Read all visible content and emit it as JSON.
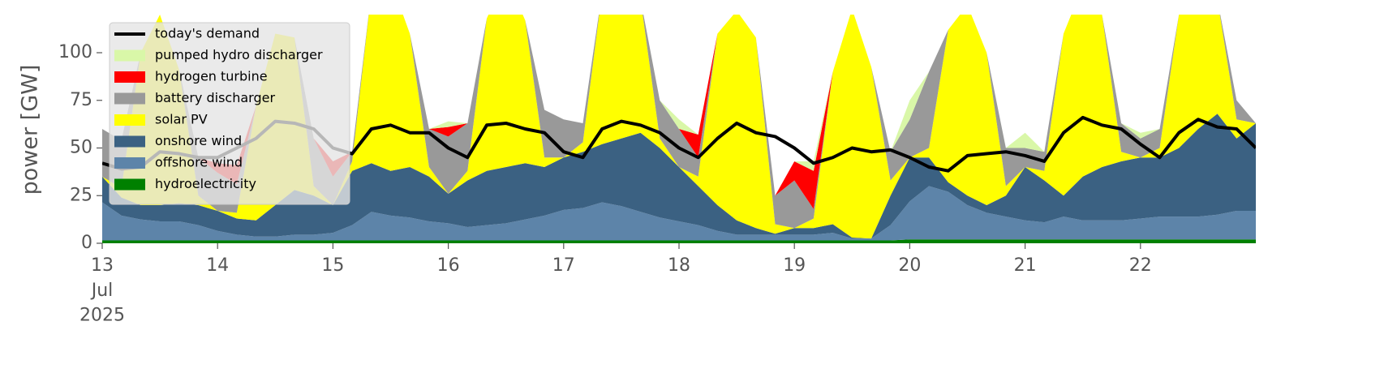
{
  "chart_data": {
    "type": "area",
    "ylabel": "power [GW]",
    "x": [
      "2025-07-13T00:00",
      "2025-07-13T04:00",
      "2025-07-13T08:00",
      "2025-07-13T12:00",
      "2025-07-13T16:00",
      "2025-07-13T20:00",
      "2025-07-14T00:00",
      "2025-07-14T04:00",
      "2025-07-14T08:00",
      "2025-07-14T12:00",
      "2025-07-14T16:00",
      "2025-07-14T20:00",
      "2025-07-15T00:00",
      "2025-07-15T04:00",
      "2025-07-15T08:00",
      "2025-07-15T12:00",
      "2025-07-15T16:00",
      "2025-07-15T20:00",
      "2025-07-16T00:00",
      "2025-07-16T04:00",
      "2025-07-16T08:00",
      "2025-07-16T12:00",
      "2025-07-16T16:00",
      "2025-07-16T20:00",
      "2025-07-17T00:00",
      "2025-07-17T04:00",
      "2025-07-17T08:00",
      "2025-07-17T12:00",
      "2025-07-17T16:00",
      "2025-07-17T20:00",
      "2025-07-18T00:00",
      "2025-07-18T04:00",
      "2025-07-18T08:00",
      "2025-07-18T12:00",
      "2025-07-18T16:00",
      "2025-07-18T20:00",
      "2025-07-19T00:00",
      "2025-07-19T04:00",
      "2025-07-19T08:00",
      "2025-07-19T12:00",
      "2025-07-19T16:00",
      "2025-07-19T20:00",
      "2025-07-20T00:00",
      "2025-07-20T04:00",
      "2025-07-20T08:00",
      "2025-07-20T12:00",
      "2025-07-20T16:00",
      "2025-07-20T20:00",
      "2025-07-21T00:00",
      "2025-07-21T04:00",
      "2025-07-21T08:00",
      "2025-07-21T12:00",
      "2025-07-21T16:00",
      "2025-07-21T20:00",
      "2025-07-22T00:00",
      "2025-07-22T04:00",
      "2025-07-22T08:00",
      "2025-07-22T12:00",
      "2025-07-22T16:00",
      "2025-07-22T20:00",
      "2025-07-23T00:00"
    ],
    "xlim": [
      "2025-07-13T00:00",
      "2025-07-23T00:00"
    ],
    "xticks": [
      {
        "value": "2025-07-13T00:00",
        "label": "13\nJul\n2025"
      },
      {
        "value": "2025-07-14T00:00",
        "label": "14"
      },
      {
        "value": "2025-07-15T00:00",
        "label": "15"
      },
      {
        "value": "2025-07-16T00:00",
        "label": "16"
      },
      {
        "value": "2025-07-17T00:00",
        "label": "17"
      },
      {
        "value": "2025-07-18T00:00",
        "label": "18"
      },
      {
        "value": "2025-07-19T00:00",
        "label": "19"
      },
      {
        "value": "2025-07-20T00:00",
        "label": "20"
      },
      {
        "value": "2025-07-21T00:00",
        "label": "21"
      },
      {
        "value": "2025-07-22T00:00",
        "label": "22"
      }
    ],
    "ylim": [
      0,
      120
    ],
    "yticks": [
      0,
      25,
      50,
      75,
      100
    ],
    "legend": "upper left",
    "series": [
      {
        "name": "hydroelectricity",
        "color": "#008000",
        "values": [
          1.5,
          1.5,
          1.5,
          1.5,
          1.5,
          1.5,
          1.5,
          1.5,
          1.5,
          1.5,
          1.5,
          1.5,
          1.5,
          1.5,
          1.5,
          1.5,
          1.5,
          1.5,
          1.5,
          1.5,
          1.5,
          1.5,
          1.5,
          1.5,
          1.5,
          1.5,
          1.5,
          1.5,
          1.5,
          1.5,
          1.5,
          1.5,
          1.5,
          1.5,
          1.5,
          1.5,
          1.5,
          1.5,
          1.5,
          1.5,
          1.5,
          1.5,
          2,
          2,
          2,
          2,
          2,
          2,
          2,
          2,
          2,
          2,
          2,
          2,
          2,
          2,
          2,
          2,
          2,
          2,
          2
        ]
      },
      {
        "name": "offshore wind",
        "color": "#5d84a9",
        "values": [
          20,
          13,
          11,
          10,
          10,
          8,
          5,
          3,
          2,
          2,
          3,
          3,
          4,
          8,
          15,
          13,
          12,
          10,
          9,
          7,
          8,
          9,
          11,
          13,
          16,
          17,
          20,
          18,
          15,
          12,
          10,
          8,
          5,
          3,
          3,
          3,
          3,
          3,
          4,
          1,
          1,
          8,
          20,
          28,
          25,
          18,
          14,
          12,
          10,
          9,
          12,
          10,
          10,
          10,
          11,
          12,
          12,
          12,
          13,
          15,
          15
        ]
      },
      {
        "name": "onshore wind",
        "color": "#3b6182",
        "values": [
          13.5,
          9.5,
          7.5,
          8.5,
          9.5,
          10.5,
          10.5,
          8.5,
          8.5,
          16.5,
          23.5,
          20.5,
          14.5,
          28.5,
          25.5,
          23.5,
          26.5,
          23.5,
          15.5,
          24.5,
          28.5,
          29.5,
          29.5,
          25.5,
          27.5,
          29.5,
          30.5,
          35.5,
          41.5,
          36.5,
          28.5,
          20.5,
          13.5,
          7.5,
          3.5,
          0.5,
          3.5,
          3.5,
          4.5,
          0.5,
          0,
          15.5,
          23,
          15,
          5,
          5,
          4,
          11,
          28,
          22,
          11,
          23,
          28,
          31,
          32,
          31,
          36,
          46,
          53,
          38,
          46
        ]
      },
      {
        "name": "solar PV",
        "color": "#ffff00",
        "values": [
          0,
          5,
          80,
          100,
          70,
          5,
          0,
          3,
          60,
          90,
          80,
          5,
          0,
          5,
          90,
          100,
          70,
          5,
          0,
          5,
          80,
          100,
          75,
          5,
          0,
          5,
          80,
          100,
          70,
          5,
          0,
          5,
          90,
          110,
          100,
          5,
          0,
          5,
          80,
          120,
          90,
          8,
          0,
          5,
          80,
          100,
          80,
          5,
          0,
          5,
          85,
          100,
          80,
          5,
          0,
          5,
          70,
          80,
          60,
          10,
          0
        ]
      },
      {
        "name": "battery discharger",
        "color": "#999999",
        "values": [
          25,
          25,
          0,
          0,
          0,
          20,
          20,
          15,
          0,
          0,
          0,
          25,
          15,
          5,
          0,
          0,
          0,
          20,
          30,
          25,
          0,
          0,
          0,
          25,
          20,
          10,
          0,
          0,
          0,
          20,
          20,
          10,
          0,
          0,
          0,
          15,
          25,
          5,
          0,
          0,
          0,
          15,
          20,
          40,
          0,
          0,
          0,
          20,
          10,
          10,
          0,
          0,
          0,
          15,
          10,
          10,
          0,
          0,
          0,
          10,
          0
        ]
      },
      {
        "name": "hydrogen turbine",
        "color": "#ff0000",
        "values": [
          0,
          0,
          0,
          0,
          0,
          0,
          5,
          10,
          0,
          0,
          0,
          0,
          8,
          0,
          0,
          0,
          0,
          0,
          5,
          0,
          0,
          0,
          0,
          0,
          0,
          0,
          0,
          0,
          0,
          0,
          0,
          12,
          0,
          0,
          0,
          0,
          10,
          20,
          0,
          0,
          0,
          0,
          0,
          0,
          0,
          0,
          0,
          0,
          0,
          0,
          0,
          0,
          0,
          0,
          0,
          0,
          0,
          0,
          0,
          0,
          0
        ]
      },
      {
        "name": "pumped hydro discharger",
        "color": "#d9f7a8",
        "values": [
          0,
          0,
          0,
          0,
          0,
          0,
          0,
          0,
          0,
          0,
          0,
          0,
          0,
          0,
          0,
          0,
          0,
          0,
          3,
          0,
          0,
          0,
          0,
          0,
          0,
          0,
          0,
          0,
          0,
          0,
          5,
          0,
          0,
          0,
          0,
          0,
          0,
          5,
          0,
          0,
          0,
          0,
          10,
          0,
          0,
          0,
          0,
          0,
          8,
          0,
          0,
          0,
          0,
          0,
          3,
          0,
          0,
          0,
          0,
          0,
          0
        ]
      },
      {
        "name": "today's demand",
        "color": "#000000",
        "type": "line",
        "values": [
          42,
          39,
          40,
          48,
          47,
          45,
          45,
          50,
          55,
          64,
          63,
          60,
          50,
          47,
          60,
          62,
          58,
          58,
          50,
          45,
          62,
          63,
          60,
          58,
          48,
          45,
          60,
          64,
          62,
          58,
          50,
          45,
          55,
          63,
          58,
          56,
          50,
          42,
          45,
          50,
          48,
          49,
          45,
          40,
          38,
          46,
          47,
          48,
          46,
          43,
          58,
          66,
          62,
          60,
          52,
          45,
          58,
          65,
          61,
          60,
          50
        ]
      }
    ]
  }
}
